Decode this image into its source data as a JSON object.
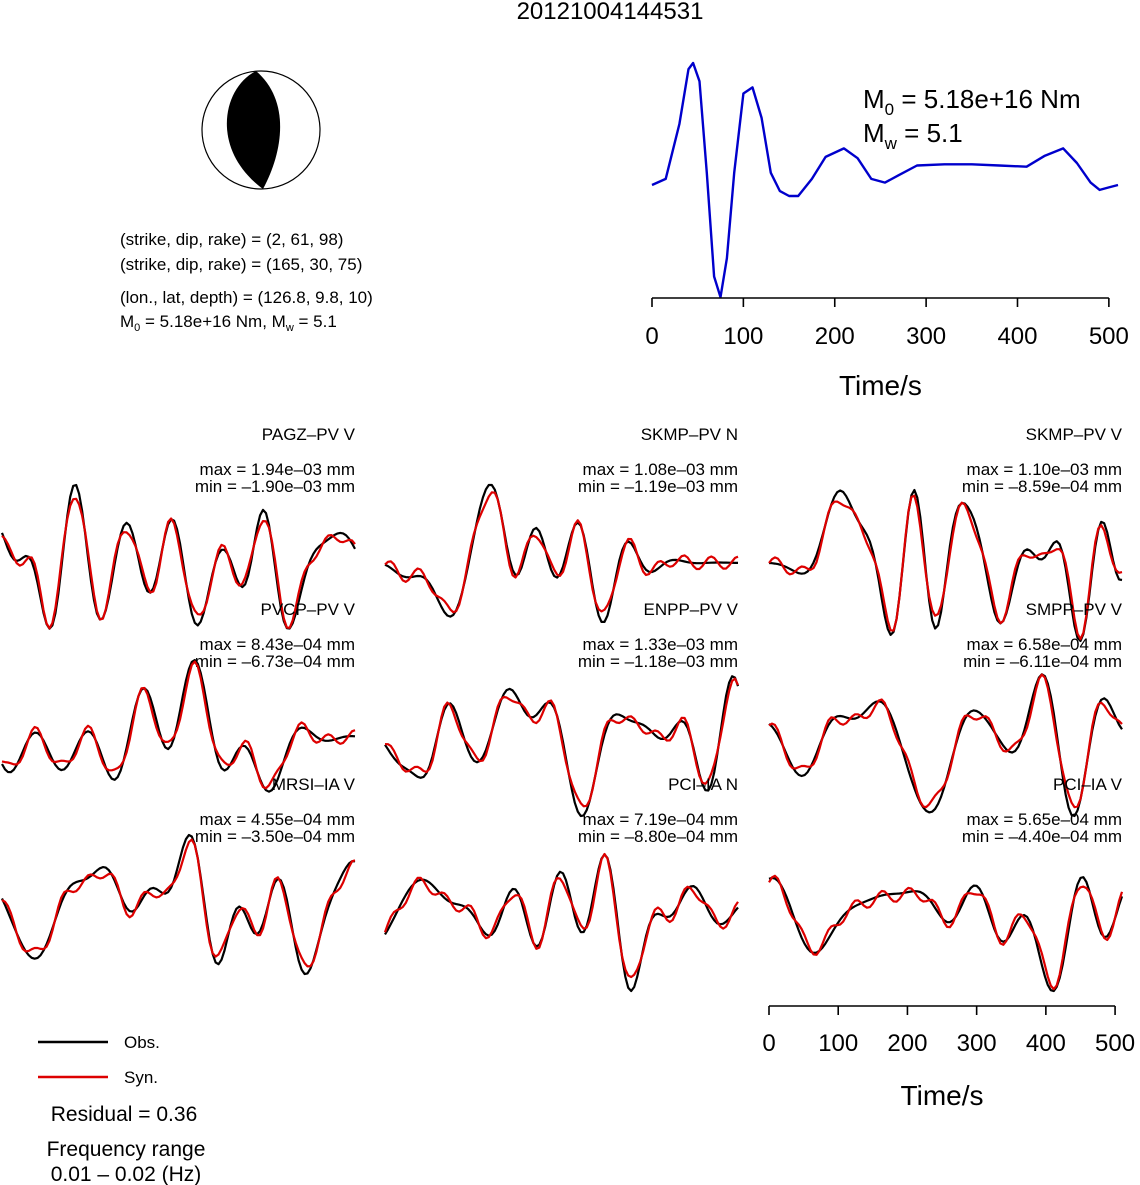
{
  "title": "20121004144531",
  "colors": {
    "observed": "#000000",
    "synthetic": "#dd0000",
    "stf": "#0000cc"
  },
  "beachball": {
    "solutions": [
      "(strike, dip, rake) = (2, 61, 98)",
      "(strike, dip, rake) = (165, 30, 75)"
    ],
    "location": "(lon., lat, depth) = (126.8, 9.8, 10)",
    "moment_line": {
      "m0_symbol": "M",
      "m0_sub": "0",
      "m0_value": " = 5.18e+16 Nm, ",
      "mw_symbol": "M",
      "mw_sub": "w",
      "mw_value": " = 5.1"
    }
  },
  "stf_labels": {
    "m0_symbol": "M",
    "m0_sub": "0",
    "m0_value": " = 5.18e+16 Nm",
    "mw_symbol": "M",
    "mw_sub": "w",
    "mw_value": " = 5.1"
  },
  "legend": {
    "obs": "Obs.",
    "syn": "Syn."
  },
  "residual": "Residual = 0.36",
  "frequency_title": "Frequency range",
  "frequency_value": "0.01 – 0.02 (Hz)",
  "chart_data": [
    {
      "type": "line",
      "title": "",
      "xlabel": "Time/s",
      "ylabel": "",
      "xlim": [
        0,
        510
      ],
      "xticks": [
        0,
        100,
        200,
        300,
        400,
        500
      ],
      "series": [
        {
          "x": [
            0,
            15,
            30,
            40,
            45,
            52,
            60,
            68,
            75,
            82,
            90,
            100,
            110,
            120,
            130,
            140,
            150,
            160,
            175,
            190,
            210,
            225,
            240,
            255,
            270,
            290,
            320,
            350,
            380,
            410,
            430,
            450,
            465,
            480,
            490,
            500,
            510
          ],
          "y": [
            0.0,
            0.05,
            0.5,
            0.95,
            1.0,
            0.85,
            0.1,
            -0.75,
            -0.92,
            -0.6,
            0.1,
            0.75,
            0.8,
            0.55,
            0.1,
            -0.05,
            -0.09,
            -0.09,
            0.05,
            0.23,
            0.3,
            0.22,
            0.05,
            0.02,
            0.08,
            0.16,
            0.17,
            0.17,
            0.16,
            0.15,
            0.24,
            0.3,
            0.18,
            0.02,
            -0.04,
            -0.02,
            0.0
          ]
        }
      ]
    },
    {
      "type": "line",
      "xlabel": "Time/s",
      "xlim": [
        0,
        510
      ],
      "xticks": [
        0,
        100,
        200,
        300,
        400,
        500
      ],
      "panels": [
        {
          "station": "PAGZ–PV V",
          "max": "max = 1.94e–03 mm",
          "min": "min = –1.90e–03 mm"
        },
        {
          "station": "SKMP–PV N",
          "max": "max = 1.08e–03 mm",
          "min": "min = –1.19e–03 mm"
        },
        {
          "station": "SKMP–PV V",
          "max": "max = 1.10e–03 mm",
          "min": "min = –8.59e–04 mm"
        },
        {
          "station": "PVCP–PV V",
          "max": "max = 8.43e–04 mm",
          "min": "min = –6.73e–04 mm"
        },
        {
          "station": "ENPP–PV V",
          "max": "max = 1.33e–03 mm",
          "min": "min = –1.18e–03 mm"
        },
        {
          "station": "SMPP–PV V",
          "max": "max = 6.58e–04 mm",
          "min": "min = –6.11e–04 mm"
        },
        {
          "station": "MRSI–IA V",
          "max": "max = 4.55e–04 mm",
          "min": "min = –3.50e–04 mm"
        },
        {
          "station": "PCI–IA N",
          "max": "max = 7.19e–04 mm",
          "min": "min = –8.80e–04 mm"
        },
        {
          "station": "PCI–IA V",
          "max": "max = 5.65e–04 mm",
          "min": "min = –4.40e–04 mm"
        }
      ]
    }
  ]
}
